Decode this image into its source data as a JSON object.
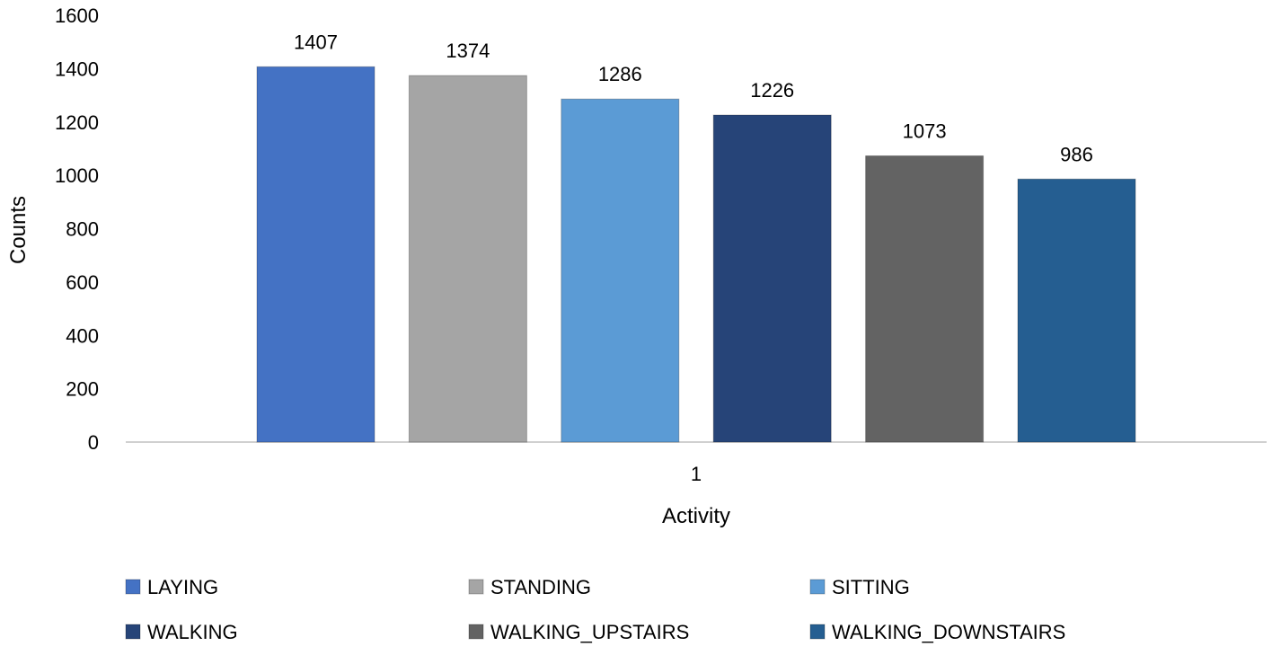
{
  "chart_data": {
    "type": "bar",
    "title": "",
    "xlabel": "Activity",
    "ylabel": "Counts",
    "categories": [
      "1"
    ],
    "ylim": [
      0,
      1600
    ],
    "yticks": [
      0,
      200,
      400,
      600,
      800,
      1000,
      1200,
      1400,
      1600
    ],
    "grid": false,
    "legend_position": "bottom",
    "series": [
      {
        "name": "LAYING",
        "values": [
          1407
        ],
        "color": "#4472C4"
      },
      {
        "name": "STANDING",
        "values": [
          1374
        ],
        "color": "#A5A5A5"
      },
      {
        "name": "SITTING",
        "values": [
          1286
        ],
        "color": "#5B9BD5"
      },
      {
        "name": "WALKING",
        "values": [
          1226
        ],
        "color": "#264478"
      },
      {
        "name": "WALKING_UPSTAIRS",
        "values": [
          1073
        ],
        "color": "#636363"
      },
      {
        "name": "WALKING_DOWNSTAIRS",
        "values": [
          986
        ],
        "color": "#255E91"
      }
    ]
  }
}
